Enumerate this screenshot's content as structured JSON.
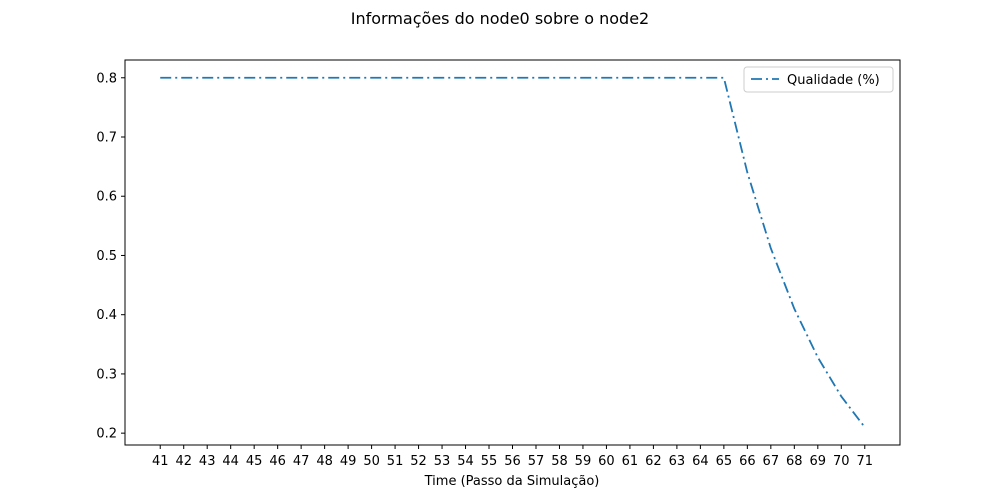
{
  "chart_data": {
    "type": "line",
    "title": "Informações do node0 sobre o node2",
    "xlabel": "Time (Passo da Simulação)",
    "ylabel": "",
    "x": [
      41,
      42,
      43,
      44,
      45,
      46,
      47,
      48,
      49,
      50,
      51,
      52,
      53,
      54,
      55,
      56,
      57,
      58,
      59,
      60,
      61,
      62,
      63,
      64,
      65,
      66,
      67,
      68,
      69,
      70,
      71
    ],
    "xlim": [
      39.5,
      72.5
    ],
    "ylim": [
      0.18,
      0.83
    ],
    "yticks": [
      0.2,
      0.3,
      0.4,
      0.5,
      0.6,
      0.7,
      0.8
    ],
    "ytick_labels": [
      "0.2",
      "0.3",
      "0.4",
      "0.5",
      "0.6",
      "0.7",
      "0.8"
    ],
    "series": [
      {
        "name": "Qualidade (%)",
        "color": "#1f77b4",
        "linestyle": "dashdot",
        "values": [
          0.8,
          0.8,
          0.8,
          0.8,
          0.8,
          0.8,
          0.8,
          0.8,
          0.8,
          0.8,
          0.8,
          0.8,
          0.8,
          0.8,
          0.8,
          0.8,
          0.8,
          0.8,
          0.8,
          0.8,
          0.8,
          0.8,
          0.8,
          0.8,
          0.8,
          0.64,
          0.512,
          0.41,
          0.328,
          0.262,
          0.21
        ]
      }
    ],
    "grid": false,
    "legend": "top-right"
  }
}
